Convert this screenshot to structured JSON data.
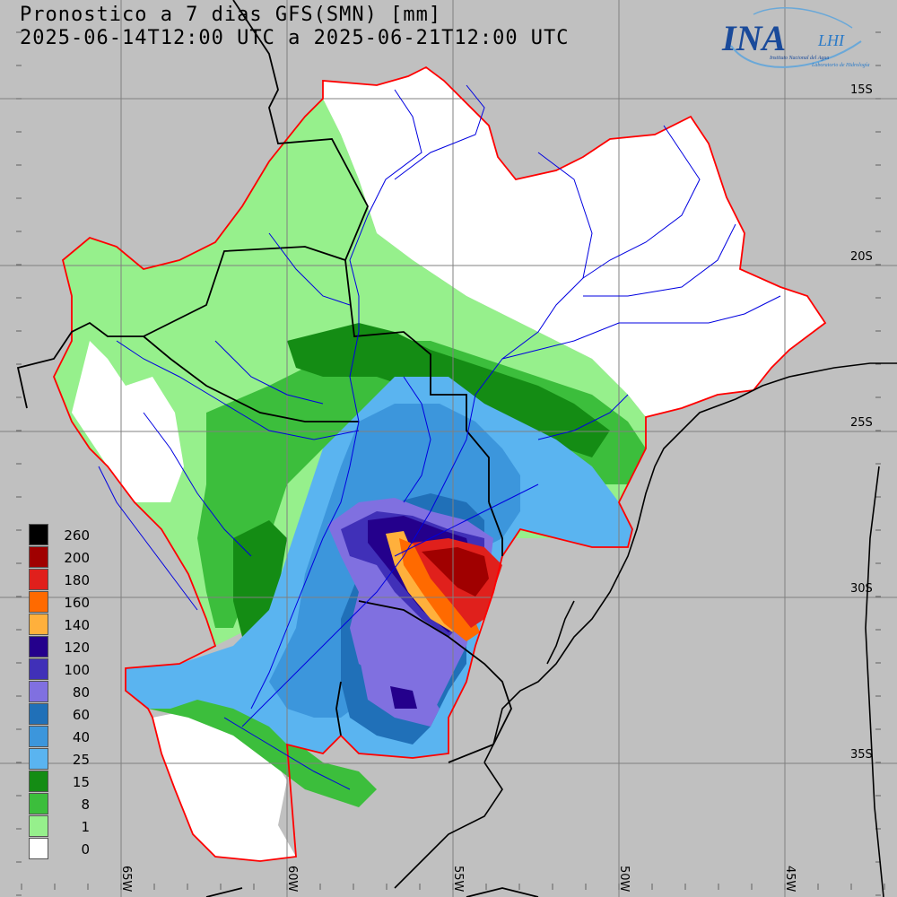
{
  "title_line1": "Pronostico a 7 dias GFS(SMN) [mm]",
  "title_line2": "2025-06-14T12:00 UTC a 2025-06-21T12:00 UTC",
  "logo": {
    "main": "INA",
    "sub": "LHI",
    "line1": "Instituto Nacional del Agua",
    "line2": "Laboratorio de Hidrología"
  },
  "lat_labels": [
    "15S",
    "20S",
    "25S",
    "30S",
    "35S"
  ],
  "lon_labels": [
    "65W",
    "60W",
    "55W",
    "50W",
    "45W"
  ],
  "legend": [
    {
      "label": "260",
      "color": "#000000"
    },
    {
      "label": "200",
      "color": "#a00000"
    },
    {
      "label": "180",
      "color": "#e0201c"
    },
    {
      "label": "160",
      "color": "#ff6a00"
    },
    {
      "label": "140",
      "color": "#ffb03c"
    },
    {
      "label": "120",
      "color": "#24008c"
    },
    {
      "label": "100",
      "color": "#4030b8"
    },
    {
      "label": "80",
      "color": "#8070e0"
    },
    {
      "label": "60",
      "color": "#2070b8"
    },
    {
      "label": "40",
      "color": "#3c96dc"
    },
    {
      "label": "25",
      "color": "#5ab4f0"
    },
    {
      "label": "15",
      "color": "#148c14"
    },
    {
      "label": "8",
      "color": "#3cbe3c"
    },
    {
      "label": "1",
      "color": "#96f08c"
    },
    {
      "label": "0",
      "color": "#ffffff"
    }
  ]
}
